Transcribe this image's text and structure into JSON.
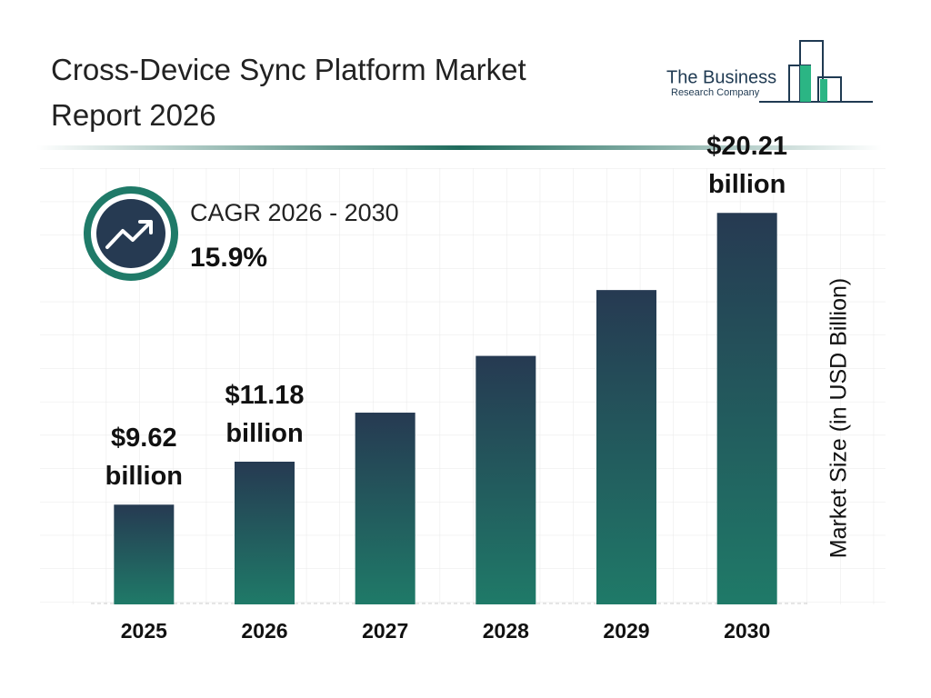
{
  "title": "Cross-Device Sync Platform Market Report 2026",
  "logo": {
    "line1": "The Business",
    "line2": "Research Company"
  },
  "cagr": {
    "label": "CAGR 2026 - 2030",
    "value": "15.9%"
  },
  "chart_data": {
    "type": "bar",
    "categories": [
      "2025",
      "2026",
      "2027",
      "2028",
      "2029",
      "2030"
    ],
    "values": [
      9.62,
      11.18,
      12.96,
      15.02,
      17.41,
      20.21
    ],
    "value_labels": [
      "$9.62 billion",
      "$11.18 billion",
      null,
      null,
      null,
      "$20.21 billion"
    ],
    "y_label": "Market Size (in USD Billion)",
    "ylim": [
      6,
      22
    ],
    "color_top": "#263a52",
    "color_bottom": "#1f7a68"
  }
}
